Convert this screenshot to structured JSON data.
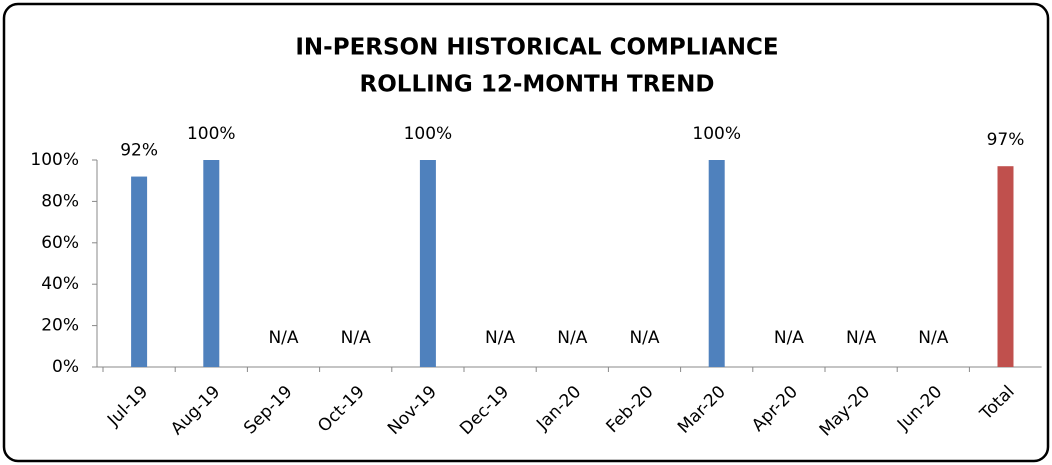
{
  "chart_data": {
    "type": "bar",
    "title": [
      "IN-PERSON HISTORICAL COMPLIANCE",
      "ROLLING 12-MONTH TREND"
    ],
    "categories": [
      "Jul-19",
      "Aug-19",
      "Sep-19",
      "Oct-19",
      "Nov-19",
      "Dec-19",
      "Jan-20",
      "Feb-20",
      "Mar-20",
      "Apr-20",
      "May-20",
      "Jun-20",
      "Total"
    ],
    "values": [
      92,
      100,
      null,
      null,
      100,
      null,
      null,
      null,
      100,
      null,
      null,
      null,
      97
    ],
    "value_labels": [
      "92%",
      "100%",
      "N/A",
      "N/A",
      "100%",
      "N/A",
      "N/A",
      "N/A",
      "100%",
      "N/A",
      "N/A",
      "N/A",
      "97%"
    ],
    "colors": [
      "#4f81bd",
      "#4f81bd",
      "#4f81bd",
      "#4f81bd",
      "#4f81bd",
      "#4f81bd",
      "#4f81bd",
      "#4f81bd",
      "#4f81bd",
      "#4f81bd",
      "#4f81bd",
      "#4f81bd",
      "#c0504d"
    ],
    "ylim": [
      0,
      100
    ],
    "yticks": [
      {
        "value": 0,
        "label": "0%"
      },
      {
        "value": 20,
        "label": "20%"
      },
      {
        "value": 40,
        "label": "40%"
      },
      {
        "value": 60,
        "label": "60%"
      },
      {
        "value": 80,
        "label": "80%"
      },
      {
        "value": 100,
        "label": "100%"
      }
    ],
    "grid": false
  }
}
